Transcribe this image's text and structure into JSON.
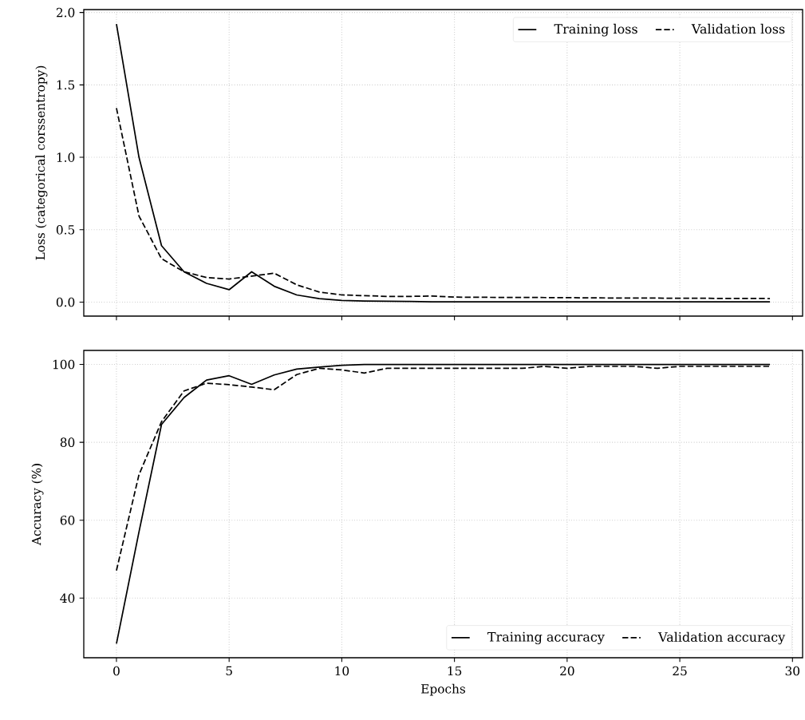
{
  "chart_data": [
    {
      "type": "line",
      "ylabel": "Loss (categorical corssentropy)",
      "x": [
        0,
        1,
        2,
        3,
        4,
        5,
        6,
        7,
        8,
        9,
        10,
        11,
        12,
        13,
        14,
        15,
        16,
        17,
        18,
        19,
        20,
        21,
        22,
        23,
        24,
        25,
        26,
        27,
        28,
        29
      ],
      "series": [
        {
          "name": "Training loss",
          "color": "#000000",
          "line_style": "solid",
          "values": [
            1.92,
            1.0,
            0.39,
            0.21,
            0.13,
            0.086,
            0.21,
            0.11,
            0.05,
            0.025,
            0.012,
            0.008,
            0.006,
            0.005,
            0.003,
            0.002,
            0.002,
            0.002,
            0.002,
            0.002,
            0.002,
            0.002,
            0.002,
            0.002,
            0.002,
            0.002,
            0.002,
            0.002,
            0.002,
            0.002
          ]
        },
        {
          "name": "Validation loss",
          "color": "#000000",
          "line_style": "dashed",
          "values": [
            1.34,
            0.595,
            0.3,
            0.21,
            0.17,
            0.16,
            0.18,
            0.2,
            0.12,
            0.07,
            0.05,
            0.045,
            0.04,
            0.04,
            0.042,
            0.035,
            0.034,
            0.033,
            0.033,
            0.032,
            0.031,
            0.03,
            0.029,
            0.028,
            0.028,
            0.027,
            0.027,
            0.026,
            0.026,
            0.025
          ]
        }
      ],
      "xlim": [
        -1.45,
        30.45
      ],
      "ylim": [
        -0.096,
        2.02
      ],
      "xticks": [
        0,
        5,
        10,
        15,
        20,
        25,
        30
      ],
      "yticks": [
        {
          "value": 0,
          "label": "0.0"
        },
        {
          "value": 0.5,
          "label": "0.5"
        },
        {
          "value": 1,
          "label": "1.0"
        },
        {
          "value": 1.5,
          "label": "1.5"
        },
        {
          "value": 2,
          "label": "2.0"
        }
      ],
      "grid": true,
      "legend": "top right",
      "tick_labels": "y"
    },
    {
      "type": "line",
      "xlabel": "Epochs",
      "ylabel": "Accuracy (%)",
      "x": [
        0,
        1,
        2,
        3,
        4,
        5,
        6,
        7,
        8,
        9,
        10,
        11,
        12,
        13,
        14,
        15,
        16,
        17,
        18,
        19,
        20,
        21,
        22,
        23,
        24,
        25,
        26,
        27,
        28,
        29
      ],
      "series": [
        {
          "name": "Training accuracy",
          "color": "#000000",
          "line_style": "solid",
          "values": [
            28.3,
            57,
            84.6,
            91.5,
            96.0,
            97.1,
            94.9,
            97.3,
            98.8,
            99.3,
            99.8,
            100,
            100,
            100,
            100,
            100,
            100,
            100,
            100,
            100,
            100,
            100,
            100,
            100,
            100,
            100,
            100,
            100,
            100,
            100
          ]
        },
        {
          "name": "Validation accuracy",
          "color": "#000000",
          "line_style": "dashed",
          "values": [
            47.1,
            71.7,
            85.3,
            93.2,
            95.2,
            94.8,
            94.2,
            93.5,
            97.4,
            99.0,
            98.6,
            97.8,
            99.0,
            99.0,
            99.0,
            99.0,
            99.0,
            99.0,
            99.0,
            99.5,
            99.0,
            99.5,
            99.5,
            99.5,
            99.0,
            99.5,
            99.5,
            99.5,
            99.5,
            99.5
          ]
        }
      ],
      "xlim": [
        -1.45,
        30.45
      ],
      "ylim": [
        24.7,
        103.6
      ],
      "xticks": [
        0,
        5,
        10,
        15,
        20,
        25,
        30
      ],
      "yticks": [
        40,
        60,
        80,
        100
      ],
      "grid": true,
      "legend": "bottom right"
    }
  ]
}
